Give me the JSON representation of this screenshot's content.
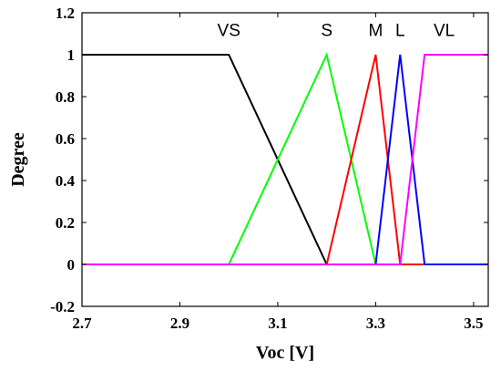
{
  "chart_data": {
    "type": "line",
    "title": "",
    "xlabel": "Voc [V]",
    "ylabel": "Degree",
    "xlim": [
      2.7,
      3.53
    ],
    "ylim": [
      -0.2,
      1.2
    ],
    "xticks": [
      "2.7",
      "2.9",
      "3.1",
      "3.3",
      "3.5"
    ],
    "xtick_values": [
      2.7,
      2.9,
      3.1,
      3.3,
      3.5
    ],
    "yticks": [
      "-0.2",
      "0",
      "0.2",
      "0.4",
      "0.6",
      "0.8",
      "1",
      "1.2"
    ],
    "ytick_values": [
      -0.2,
      0,
      0.2,
      0.4,
      0.6,
      0.8,
      1,
      1.2
    ],
    "grid": false,
    "legend": "none",
    "series": [
      {
        "name": "VS",
        "color": "#000000",
        "label_x": 3.0,
        "label_y": 1.09,
        "x": [
          2.7,
          3.0,
          3.2,
          3.53
        ],
        "y": [
          1,
          1,
          0,
          0
        ]
      },
      {
        "name": "S",
        "color": "#00ff00",
        "label_x": 3.2,
        "label_y": 1.09,
        "x": [
          2.7,
          3.0,
          3.2,
          3.3,
          3.53
        ],
        "y": [
          0,
          0,
          1,
          0,
          0
        ]
      },
      {
        "name": "M",
        "color": "#ff0000",
        "label_x": 3.3,
        "label_y": 1.09,
        "x": [
          2.7,
          3.2,
          3.3,
          3.35,
          3.53
        ],
        "y": [
          0,
          0,
          1,
          0,
          0
        ]
      },
      {
        "name": "L",
        "color": "#0000ff",
        "label_x": 3.35,
        "label_y": 1.09,
        "x": [
          2.7,
          3.3,
          3.35,
          3.4,
          3.53
        ],
        "y": [
          0,
          0,
          1,
          0,
          0
        ]
      },
      {
        "name": "VL",
        "color": "#ff00ff",
        "label_x": 3.44,
        "label_y": 1.09,
        "x": [
          2.7,
          3.35,
          3.4,
          3.53
        ],
        "y": [
          0,
          0,
          1,
          1
        ]
      }
    ]
  }
}
